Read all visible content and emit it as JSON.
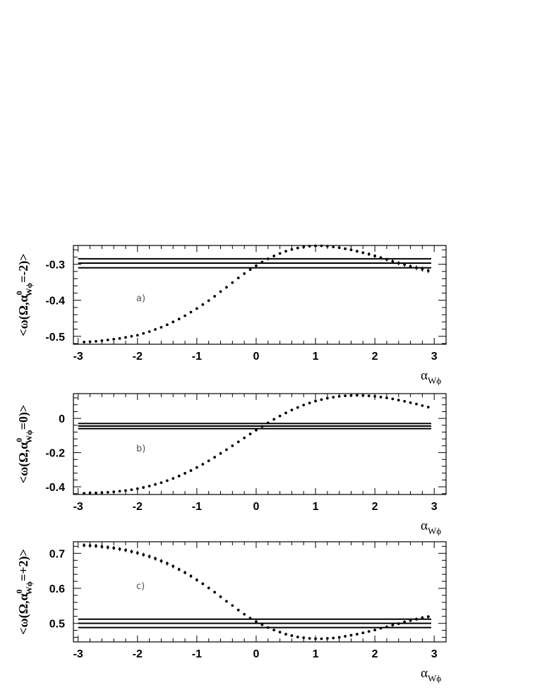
{
  "chart_data": [
    {
      "type": "scatter",
      "panel_label": "a)",
      "ylabel": {
        "pre": "<ω(Ω,α",
        "sup": "0",
        "sub": "Wϕ",
        "post": "=-2)>"
      },
      "xlabel": {
        "main": "α",
        "sub": "Wϕ"
      },
      "xlim": [
        -3.08,
        3.2
      ],
      "ylim": [
        -0.522,
        -0.248
      ],
      "xticks": [
        -3,
        -2,
        -1,
        0,
        1,
        2,
        3
      ],
      "yticks": [
        -0.5,
        -0.4,
        -0.3
      ],
      "ytick_labels": [
        "-0.5",
        "-0.4",
        "-0.3"
      ],
      "xtick_labels": [
        "-3",
        "-2",
        "-1",
        "0",
        "1",
        "2",
        "3"
      ],
      "ref_lines": {
        "y": [
          -0.285,
          -0.297,
          -0.31
        ],
        "x_range": [
          -3,
          2.95
        ]
      },
      "series": [
        {
          "x0": -2.9,
          "dx": 0.1,
          "y": [
            -0.516,
            -0.515,
            -0.514,
            -0.512,
            -0.51,
            -0.508,
            -0.506,
            -0.503,
            -0.5,
            -0.497,
            -0.492,
            -0.487,
            -0.481,
            -0.475,
            -0.468,
            -0.46,
            -0.452,
            -0.443,
            -0.433,
            -0.423,
            -0.412,
            -0.401,
            -0.389,
            -0.376,
            -0.364,
            -0.351,
            -0.338,
            -0.326,
            -0.315,
            -0.304,
            -0.294,
            -0.285,
            -0.277,
            -0.27,
            -0.264,
            -0.259,
            -0.255,
            -0.252,
            -0.25,
            -0.249,
            -0.249,
            -0.25,
            -0.252,
            -0.254,
            -0.257,
            -0.26,
            -0.264,
            -0.268,
            -0.272,
            -0.277,
            -0.282,
            -0.287,
            -0.292,
            -0.297,
            -0.301,
            -0.306,
            -0.31,
            -0.314,
            -0.318
          ],
          "err": [
            0.003,
            0.003,
            0.003,
            0.003,
            0.003,
            0.003,
            0.003,
            0.003,
            0.003,
            0.003,
            0.003,
            0.003,
            0.003,
            0.003,
            0.003,
            0.003,
            0.003,
            0.002,
            0.002,
            0.002,
            0.002,
            0.002,
            0.002,
            0.002,
            0.002,
            0.002,
            0.002,
            0.002,
            0.002,
            0.002,
            0.002,
            0.002,
            0.002,
            0.002,
            0.002,
            0.002,
            0.002,
            0.002,
            0.003,
            0.003,
            0.003,
            0.003,
            0.003,
            0.003,
            0.004,
            0.004,
            0.004,
            0.004,
            0.005,
            0.005,
            0.005,
            0.005,
            0.006,
            0.006,
            0.006,
            0.006,
            0.007,
            0.007,
            0.007
          ]
        }
      ]
    },
    {
      "type": "scatter",
      "panel_label": "b)",
      "ylabel": {
        "pre": "<ω(Ω,α",
        "sup": "0",
        "sub": "Wϕ",
        "post": "=0)>"
      },
      "xlabel": {
        "main": "α",
        "sub": "Wϕ"
      },
      "xlim": [
        -3.08,
        3.2
      ],
      "ylim": [
        -0.445,
        0.145
      ],
      "xticks": [
        -3,
        -2,
        -1,
        0,
        1,
        2,
        3
      ],
      "yticks": [
        -0.4,
        -0.2,
        0
      ],
      "ytick_labels": [
        "-0.4",
        "-0.2",
        "0"
      ],
      "xtick_labels": [
        "-3",
        "-2",
        "-1",
        "0",
        "1",
        "2",
        "3"
      ],
      "ref_lines": {
        "y": [
          -0.03,
          -0.045,
          -0.06
        ],
        "x_range": [
          -3,
          2.95
        ]
      },
      "series": [
        {
          "x0": -2.9,
          "dx": 0.1,
          "y": [
            -0.438,
            -0.437,
            -0.436,
            -0.434,
            -0.432,
            -0.429,
            -0.426,
            -0.422,
            -0.417,
            -0.411,
            -0.404,
            -0.396,
            -0.386,
            -0.376,
            -0.364,
            -0.351,
            -0.337,
            -0.321,
            -0.305,
            -0.287,
            -0.268,
            -0.248,
            -0.227,
            -0.205,
            -0.183,
            -0.16,
            -0.137,
            -0.114,
            -0.091,
            -0.069,
            -0.047,
            -0.026,
            -0.005,
            0.014,
            0.032,
            0.049,
            0.064,
            0.078,
            0.09,
            0.101,
            0.11,
            0.118,
            0.124,
            0.129,
            0.132,
            0.134,
            0.135,
            0.134,
            0.132,
            0.129,
            0.125,
            0.12,
            0.114,
            0.107,
            0.1,
            0.092,
            0.084,
            0.075,
            0.066
          ],
          "err": [
            0.003,
            0.003,
            0.003,
            0.003,
            0.003,
            0.003,
            0.003,
            0.003,
            0.003,
            0.003,
            0.003,
            0.003,
            0.003,
            0.003,
            0.003,
            0.003,
            0.003,
            0.003,
            0.003,
            0.003,
            0.003,
            0.003,
            0.003,
            0.003,
            0.003,
            0.003,
            0.003,
            0.003,
            0.003,
            0.003,
            0.003,
            0.003,
            0.003,
            0.003,
            0.003,
            0.003,
            0.003,
            0.003,
            0.003,
            0.003,
            0.003,
            0.003,
            0.003,
            0.003,
            0.003,
            0.003,
            0.003,
            0.003,
            0.003,
            0.003,
            0.003,
            0.003,
            0.003,
            0.003,
            0.003,
            0.003,
            0.003,
            0.003,
            0.003
          ]
        }
      ]
    },
    {
      "type": "scatter",
      "panel_label": "c)",
      "ylabel": {
        "pre": "<ω(Ω,α",
        "sup": "0",
        "sub": "Wϕ",
        "post": "=+2)>"
      },
      "xlabel": {
        "main": "α",
        "sub": "Wϕ"
      },
      "xlim": [
        -3.08,
        3.2
      ],
      "ylim": [
        0.447,
        0.733
      ],
      "xticks": [
        -3,
        -2,
        -1,
        0,
        1,
        2,
        3
      ],
      "yticks": [
        0.5,
        0.6,
        0.7
      ],
      "ytick_labels": [
        "0.5",
        "0.6",
        "0.7"
      ],
      "xtick_labels": [
        "-3",
        "-2",
        "-1",
        "0",
        "1",
        "2",
        "3"
      ],
      "ref_lines": {
        "y": [
          0.512,
          0.5,
          0.488
        ],
        "x_range": [
          -3,
          2.95
        ]
      },
      "series": [
        {
          "x0": -2.9,
          "dx": 0.1,
          "y": [
            0.723,
            0.722,
            0.721,
            0.719,
            0.717,
            0.715,
            0.712,
            0.709,
            0.705,
            0.701,
            0.696,
            0.691,
            0.685,
            0.678,
            0.671,
            0.663,
            0.654,
            0.645,
            0.635,
            0.624,
            0.613,
            0.601,
            0.589,
            0.576,
            0.563,
            0.551,
            0.538,
            0.526,
            0.515,
            0.505,
            0.496,
            0.488,
            0.481,
            0.475,
            0.469,
            0.465,
            0.461,
            0.459,
            0.457,
            0.456,
            0.456,
            0.457,
            0.458,
            0.46,
            0.463,
            0.466,
            0.469,
            0.473,
            0.477,
            0.481,
            0.486,
            0.49,
            0.495,
            0.499,
            0.504,
            0.508,
            0.512,
            0.516,
            0.519
          ],
          "err": [
            0.006,
            0.006,
            0.006,
            0.006,
            0.006,
            0.006,
            0.006,
            0.006,
            0.006,
            0.006,
            0.006,
            0.006,
            0.006,
            0.006,
            0.006,
            0.006,
            0.005,
            0.005,
            0.005,
            0.005,
            0.004,
            0.004,
            0.004,
            0.003,
            0.003,
            0.002,
            0.002,
            0.002,
            0.002,
            0.002,
            0.002,
            0.002,
            0.002,
            0.002,
            0.002,
            0.002,
            0.002,
            0.002,
            0.002,
            0.002,
            0.002,
            0.002,
            0.002,
            0.002,
            0.002,
            0.002,
            0.002,
            0.002,
            0.003,
            0.003,
            0.003,
            0.003,
            0.004,
            0.004,
            0.004,
            0.004,
            0.005,
            0.005,
            0.005
          ]
        }
      ]
    }
  ]
}
